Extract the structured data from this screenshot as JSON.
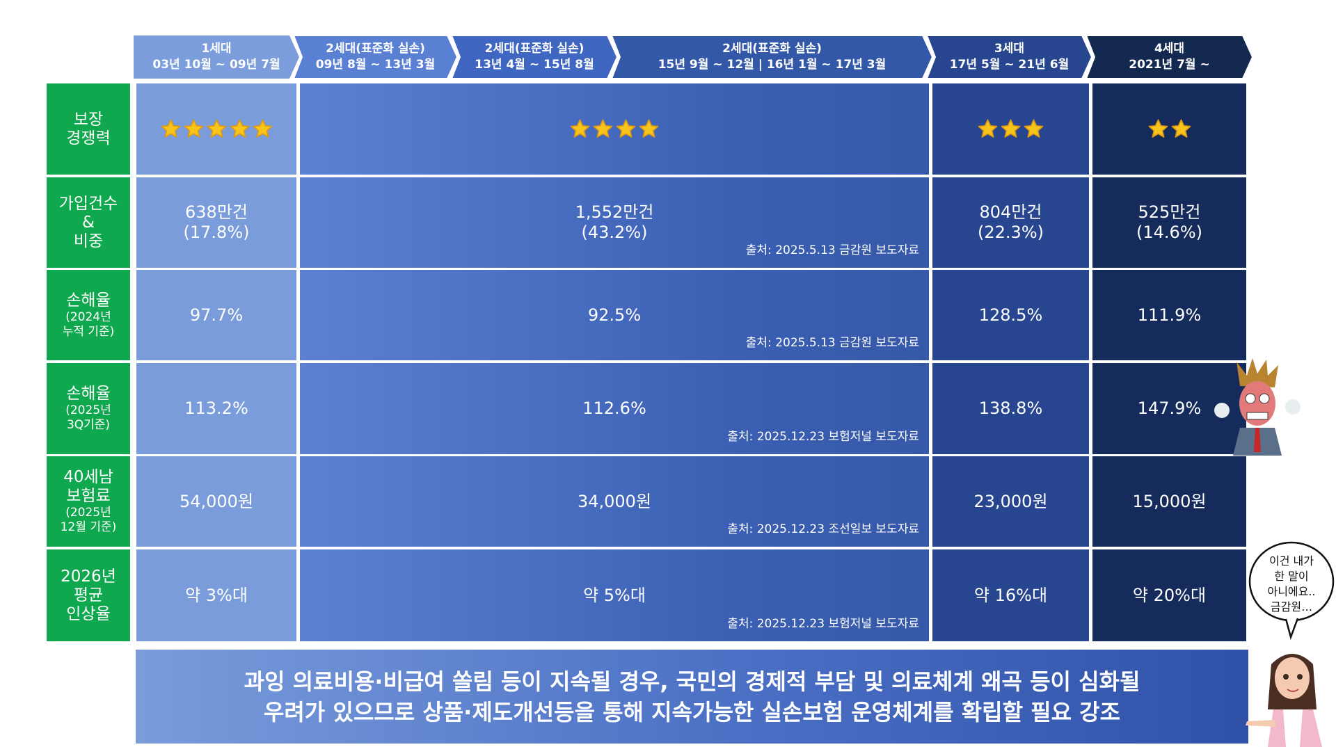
{
  "header": [
    {
      "title": "1세대",
      "period": "03년 10월 ~ 09년 7월",
      "color": "#7b9ddc"
    },
    {
      "title": "2세대(표준화 실손)",
      "period": "09년 8월 ~ 13년 3월",
      "color": "#5a80d4"
    },
    {
      "title": "2세대(표준화 실손)",
      "period": "13년 4월 ~ 15년 8월",
      "color": "#3f66c0"
    },
    {
      "title": "2세대(표준화 실손)",
      "period": "15년 9월 ~ 12월  |  16년 1월 ~ 17년 3월",
      "color": "#3458a8"
    },
    {
      "title": "3세대",
      "period": "17년 5월 ~ 21년 6월",
      "color": "#28468f"
    },
    {
      "title": "4세대",
      "period": "2021년 7월 ~",
      "color": "#14294f"
    }
  ],
  "rows": [
    {
      "label": [
        "보장",
        "경쟁력"
      ],
      "sublabel": [],
      "stars": [
        5,
        4,
        3,
        2
      ],
      "cells": [],
      "source": ""
    },
    {
      "label": [
        "가입건수",
        "&",
        "비중"
      ],
      "sublabel": [],
      "cells": [
        [
          "638만건",
          "(17.8%)"
        ],
        [
          "1,552만건",
          "(43.2%)"
        ],
        [
          "804만건",
          "(22.3%)"
        ],
        [
          "525만건",
          "(14.6%)"
        ]
      ],
      "source": "출처: 2025.5.13 금감원 보도자료"
    },
    {
      "label": [
        "손해율"
      ],
      "sublabel": [
        "(2024년",
        "누적 기준)"
      ],
      "cells": [
        [
          "97.7%"
        ],
        [
          "92.5%"
        ],
        [
          "128.5%"
        ],
        [
          "111.9%"
        ]
      ],
      "source": "출처: 2025.5.13 금감원 보도자료"
    },
    {
      "label": [
        "손해율"
      ],
      "sublabel": [
        "(2025년",
        "3Q기준)"
      ],
      "cells": [
        [
          "113.2%"
        ],
        [
          "112.6%"
        ],
        [
          "138.8%"
        ],
        [
          "147.9%"
        ]
      ],
      "source": "출처: 2025.12.23 보험저널 보도자료"
    },
    {
      "label": [
        "40세남",
        "보험료"
      ],
      "sublabel": [
        "(2025년",
        "12월 기준)"
      ],
      "cells": [
        [
          "54,000원"
        ],
        [
          "34,000원"
        ],
        [
          "23,000원"
        ],
        [
          "15,000원"
        ]
      ],
      "source": "출처: 2025.12.23 조선일보 보도자료"
    },
    {
      "label": [
        "2026년",
        "평균",
        "인상율"
      ],
      "sublabel": [],
      "cells": [
        [
          "약 3%대"
        ],
        [
          "약 5%대"
        ],
        [
          "약 16%대"
        ],
        [
          "약 20%대"
        ]
      ],
      "source": "출처: 2025.12.23 보험저널 보도자료"
    }
  ],
  "banner": [
    "과잉 의료비용·비급여 쏠림 등이 지속될 경우, 국민의 경제적 부담 및 의료체계 왜곡 등이 심화될",
    "우려가 있으므로 상품·제도개선등을 통해 지속가능한 실손보험 운영체계를 확립할 필요 강조"
  ],
  "speech_bubble": [
    "이건 내가",
    "한 말이",
    "아니에요..",
    "금감원…"
  ],
  "colors": {
    "label_green": "#10a84e",
    "star": "#f7c51e"
  },
  "icons": {
    "angry_man": "angry-man-illustration",
    "woman": "pointing-woman-illustration"
  }
}
